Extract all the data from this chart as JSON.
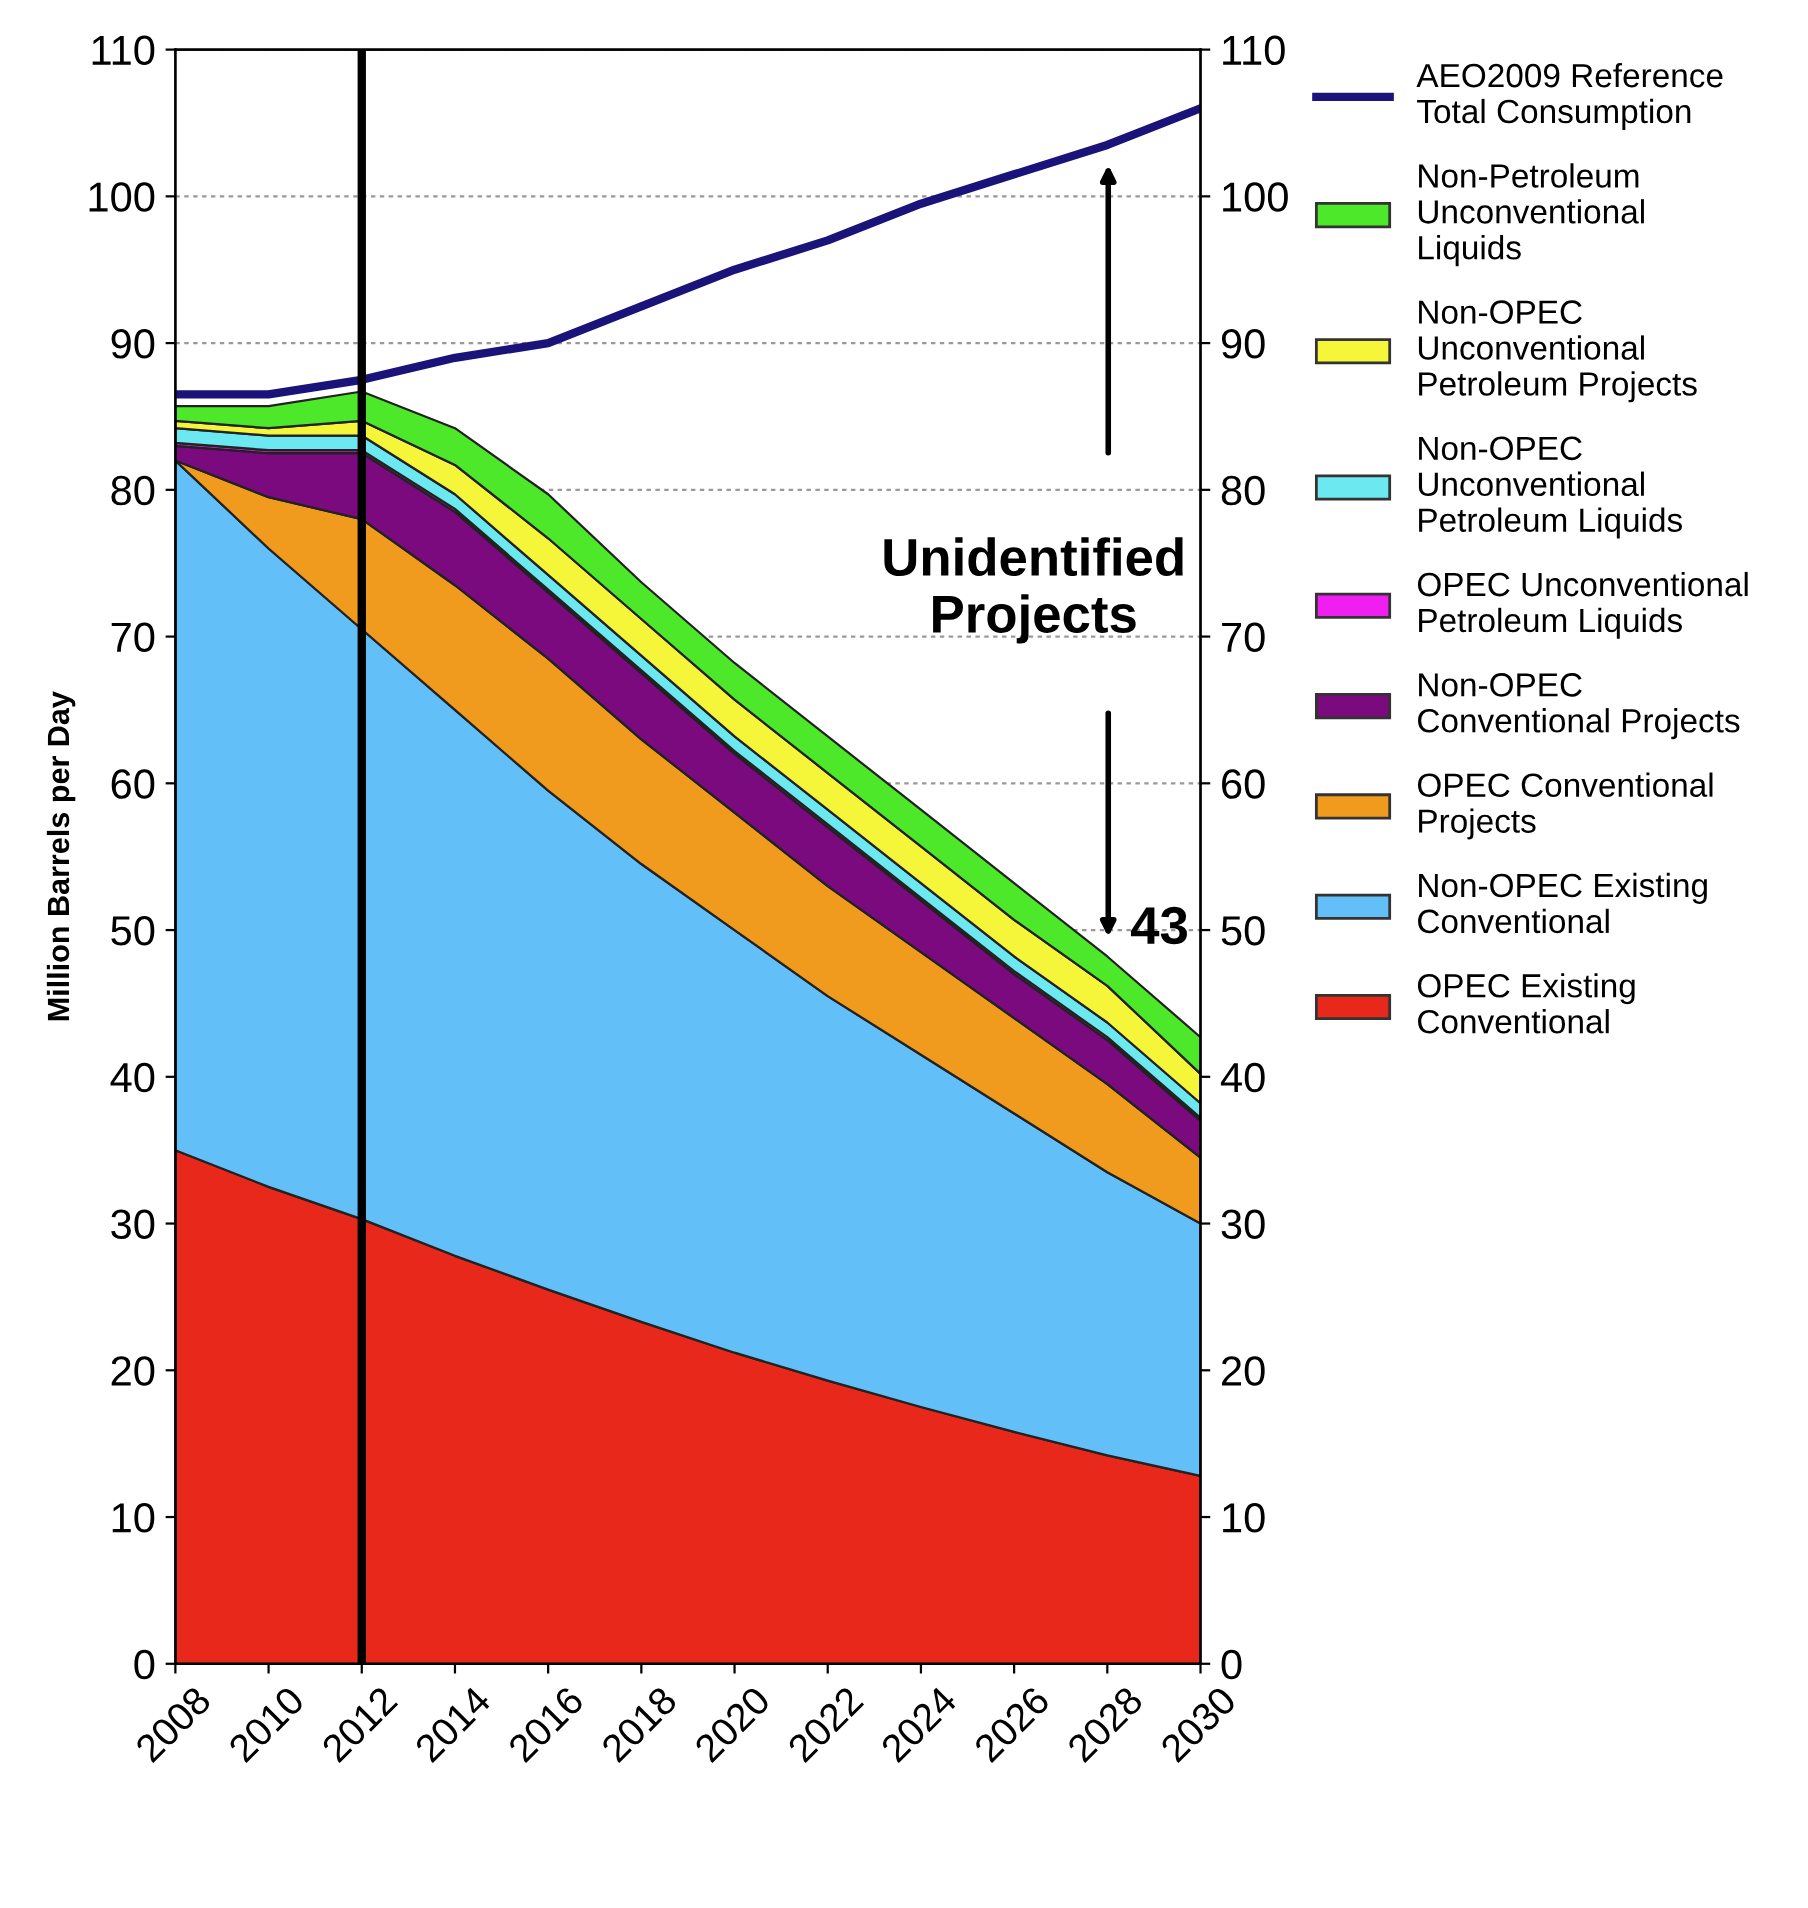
{
  "chart_data": {
    "type": "area",
    "stacked": true,
    "ylabel": "Million Barrels per Day",
    "x": [
      2008,
      2010,
      2012,
      2014,
      2016,
      2018,
      2020,
      2022,
      2024,
      2026,
      2028,
      2030
    ],
    "xlim": [
      2008,
      2030
    ],
    "xticks": [
      2008,
      2010,
      2012,
      2014,
      2016,
      2018,
      2020,
      2022,
      2024,
      2026,
      2028,
      2030
    ],
    "ylim": [
      0,
      110
    ],
    "yticks": [
      0,
      10,
      20,
      30,
      40,
      50,
      60,
      70,
      80,
      90,
      100,
      110
    ],
    "y2lim": [
      0,
      110
    ],
    "y2ticks": [
      0,
      10,
      20,
      30,
      40,
      50,
      60,
      70,
      80,
      90,
      100,
      110
    ],
    "grid": "y",
    "legend": "right",
    "series": [
      {
        "name": "OPEC Existing\nConventional",
        "color": "#e8281a",
        "values": [
          35,
          32.5,
          30.3,
          27.8,
          25.5,
          23.3,
          21.2,
          19.3,
          17.5,
          15.8,
          14.2,
          12.8
        ]
      },
      {
        "name": "Non-OPEC Existing\nConventional",
        "color": "#63bff7",
        "values": [
          47,
          43.5,
          40.2,
          37.2,
          34,
          31.2,
          28.8,
          26.2,
          24,
          21.7,
          19.3,
          17.2
        ]
      },
      {
        "name": "OPEC Conventional\nProjects",
        "color": "#f09b1e",
        "values": [
          0,
          3.5,
          7.5,
          8.5,
          9,
          8.5,
          8,
          7.5,
          7,
          6.5,
          6,
          4.5
        ]
      },
      {
        "name": "Non-OPEC\nConventional Projects",
        "color": "#7a0a7e",
        "values": [
          1,
          3,
          4.5,
          5,
          4.5,
          4.5,
          4,
          4,
          3.5,
          3,
          3,
          2.5
        ]
      },
      {
        "name": "OPEC Unconventional\nPetroleum Liquids",
        "color": "#f01ef0",
        "values": [
          0.2,
          0.2,
          0.2,
          0.2,
          0.2,
          0.2,
          0.2,
          0.2,
          0.2,
          0.2,
          0.2,
          0.2
        ]
      },
      {
        "name": "Non-OPEC\nUnconventional\nPetroleum Liquids",
        "color": "#6ce8f0",
        "values": [
          1,
          1,
          1,
          1,
          1,
          1,
          1,
          1,
          1,
          1,
          1,
          1
        ]
      },
      {
        "name": "Non-OPEC\nUnconventional\nPetroleum Projects",
        "color": "#f5f53a",
        "values": [
          0.5,
          0.5,
          1,
          2,
          2.5,
          2.5,
          2.5,
          2.5,
          2.5,
          2.5,
          2.5,
          2
        ]
      },
      {
        "name": "Non-Petroleum\nUnconventional\nLiquids",
        "color": "#4ee82a",
        "values": [
          1,
          1.5,
          2,
          2.5,
          3,
          2.5,
          2.5,
          2.5,
          2.5,
          2.5,
          2,
          2.5
        ]
      },
      {
        "name": "AEO2009 Reference\nTotal Consumption",
        "type": "line",
        "color": "#1a137a",
        "values": [
          86.5,
          86.5,
          87.5,
          89,
          90,
          92.5,
          95,
          97,
          99.5,
          101.5,
          103.5,
          106
        ]
      }
    ],
    "ref_lines": [
      {
        "axis": "x",
        "value": 2012,
        "color": "#000000"
      }
    ],
    "annotations": [
      "Unidentified\nProjects",
      "43"
    ]
  }
}
